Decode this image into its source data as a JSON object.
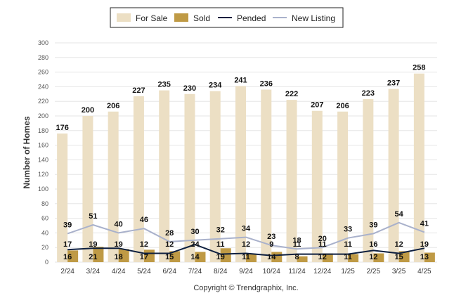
{
  "chart_data": {
    "type": "bar",
    "categories": [
      "2/24",
      "3/24",
      "4/24",
      "5/24",
      "6/24",
      "7/24",
      "8/24",
      "9/24",
      "10/24",
      "11/24",
      "12/24",
      "1/25",
      "2/25",
      "3/25",
      "4/25"
    ],
    "series": [
      {
        "name": "For Sale",
        "type": "bar",
        "color": "#ecdfc4",
        "values": [
          176,
          200,
          206,
          227,
          235,
          230,
          234,
          241,
          236,
          222,
          207,
          206,
          223,
          237,
          258
        ]
      },
      {
        "name": "Sold",
        "type": "bar",
        "color": "#bf9a45",
        "values": [
          16,
          21,
          18,
          17,
          15,
          14,
          19,
          11,
          14,
          8,
          12,
          11,
          12,
          15,
          13
        ]
      },
      {
        "name": "Pended",
        "type": "line",
        "color": "#0d1f3f",
        "values": [
          17,
          19,
          19,
          12,
          12,
          24,
          11,
          12,
          9,
          11,
          11,
          11,
          16,
          12,
          19
        ]
      },
      {
        "name": "New Listing",
        "type": "line",
        "color": "#a9b1cb",
        "values": [
          39,
          51,
          40,
          46,
          28,
          30,
          32,
          34,
          23,
          18,
          20,
          33,
          39,
          54,
          41
        ]
      }
    ],
    "ylabel": "Number of Homes",
    "ylim": [
      0,
      300
    ],
    "yticks": [
      0,
      20,
      40,
      60,
      80,
      100,
      120,
      140,
      160,
      180,
      200,
      220,
      240,
      260,
      280,
      300
    ],
    "grid": true,
    "legend_position": "top-center"
  },
  "legend": {
    "for_sale": "For Sale",
    "sold": "Sold",
    "pended": "Pended",
    "new_listing": "New Listing"
  },
  "copyright": "Copyright © Trendgraphix, Inc."
}
